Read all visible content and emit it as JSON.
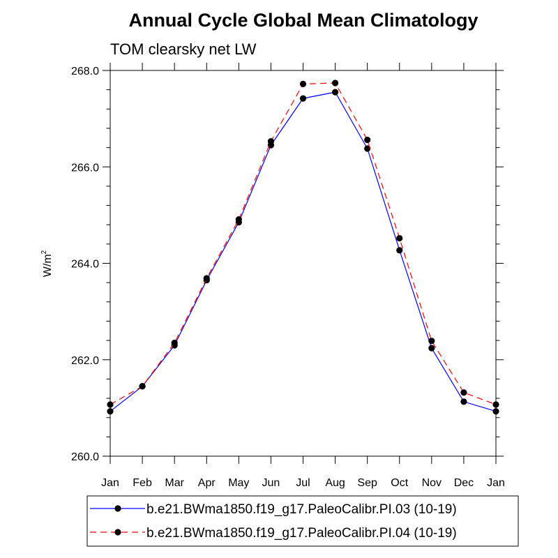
{
  "chart_data": {
    "type": "line",
    "title": "Annual Cycle Global Mean Climatology",
    "subtitle": "TOM clearsky net LW",
    "ylabel_main": "W/m",
    "ylabel_sup": "2",
    "xlabel": "",
    "categories": [
      "Jan",
      "Feb",
      "Mar",
      "Apr",
      "May",
      "Jun",
      "Jul",
      "Aug",
      "Sep",
      "Oct",
      "Nov",
      "Dec",
      "Jan"
    ],
    "ylim": [
      260.0,
      268.0
    ],
    "yticks": [
      "260.0",
      "262.0",
      "264.0",
      "266.0",
      "268.0"
    ],
    "series": [
      {
        "name": "b.e21.BWma1850.f19_g17.PaleoCalibr.PI.03 (10-19)",
        "color": "#0000ff",
        "dash": "solid",
        "values": [
          260.93,
          261.45,
          262.3,
          263.65,
          264.85,
          266.45,
          267.42,
          267.55,
          266.38,
          264.27,
          262.24,
          261.13,
          260.93
        ]
      },
      {
        "name": "b.e21.BWma1850.f19_g17.PaleoCalibr.PI.04 (10-19)",
        "color": "#ff0000",
        "dash": "dashed",
        "values": [
          261.07,
          261.45,
          262.35,
          263.69,
          264.91,
          266.53,
          267.72,
          267.74,
          266.56,
          264.52,
          262.39,
          261.32,
          261.07
        ]
      }
    ],
    "grid": false,
    "legend_position": "bottom"
  }
}
